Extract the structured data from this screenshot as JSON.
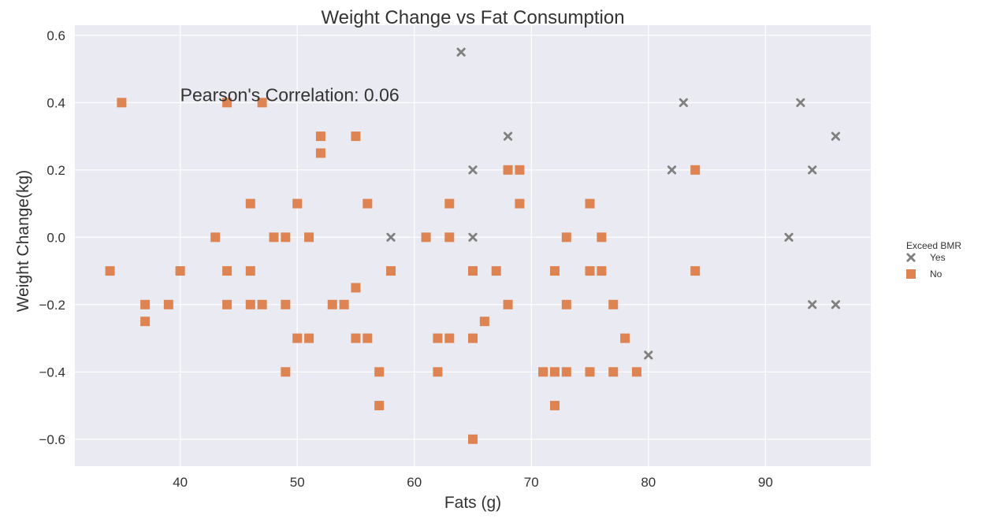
{
  "chart_data": {
    "type": "scatter",
    "title": "Weight Change vs Fat Consumption",
    "xlabel": "Fats (g)",
    "ylabel": "Weight Change(kg)",
    "xlim": [
      31,
      99
    ],
    "ylim": [
      -0.68,
      0.63
    ],
    "xticks": [
      40,
      50,
      60,
      70,
      80,
      90
    ],
    "yticks": [
      -0.6,
      -0.4,
      -0.2,
      0.0,
      0.2,
      0.4,
      0.6
    ],
    "ytick_labels": [
      "−0.6",
      "−0.4",
      "−0.2",
      "0.0",
      "0.2",
      "0.4",
      "0.6"
    ],
    "grid": true,
    "annotation": {
      "text": "Pearson's Correlation: 0.06",
      "x": 40,
      "y": 0.4
    },
    "legend": {
      "title": "Exceed BMR",
      "placement": "right"
    },
    "background_color": "#eaeaf2",
    "series": [
      {
        "name": "Yes",
        "marker": "x",
        "color": "#808080",
        "points": [
          [
            64,
            0.55
          ],
          [
            58,
            0.0
          ],
          [
            65,
            0.2
          ],
          [
            65,
            0.0
          ],
          [
            68,
            0.3
          ],
          [
            80,
            -0.35
          ],
          [
            82,
            0.2
          ],
          [
            83,
            0.4
          ],
          [
            92,
            0.0
          ],
          [
            93,
            0.4
          ],
          [
            94,
            0.2
          ],
          [
            94,
            -0.2
          ],
          [
            96,
            0.3
          ],
          [
            96,
            -0.2
          ]
        ]
      },
      {
        "name": "No",
        "marker": "square",
        "color": "#dd8452",
        "points": [
          [
            34,
            -0.1
          ],
          [
            35,
            0.4
          ],
          [
            37,
            -0.2
          ],
          [
            37,
            -0.25
          ],
          [
            39,
            -0.2
          ],
          [
            40,
            -0.1
          ],
          [
            43,
            0.0
          ],
          [
            44,
            0.4
          ],
          [
            44,
            -0.1
          ],
          [
            44,
            -0.2
          ],
          [
            46,
            0.1
          ],
          [
            46,
            -0.1
          ],
          [
            46,
            -0.2
          ],
          [
            47,
            0.4
          ],
          [
            47,
            -0.2
          ],
          [
            48,
            0.0
          ],
          [
            49,
            0.0
          ],
          [
            49,
            -0.2
          ],
          [
            49,
            -0.4
          ],
          [
            50,
            0.1
          ],
          [
            50,
            -0.3
          ],
          [
            51,
            0.0
          ],
          [
            51,
            -0.3
          ],
          [
            52,
            0.3
          ],
          [
            52,
            0.25
          ],
          [
            53,
            -0.2
          ],
          [
            54,
            -0.2
          ],
          [
            55,
            0.3
          ],
          [
            55,
            -0.15
          ],
          [
            55,
            -0.3
          ],
          [
            56,
            0.1
          ],
          [
            56,
            -0.3
          ],
          [
            57,
            -0.4
          ],
          [
            57,
            -0.5
          ],
          [
            58,
            -0.1
          ],
          [
            61,
            0.0
          ],
          [
            62,
            -0.3
          ],
          [
            62,
            -0.4
          ],
          [
            63,
            0.1
          ],
          [
            63,
            0.0
          ],
          [
            63,
            -0.3
          ],
          [
            65,
            -0.1
          ],
          [
            65,
            -0.3
          ],
          [
            65,
            -0.6
          ],
          [
            66,
            -0.25
          ],
          [
            67,
            -0.1
          ],
          [
            68,
            0.2
          ],
          [
            68,
            -0.2
          ],
          [
            69,
            0.2
          ],
          [
            69,
            0.1
          ],
          [
            71,
            -0.4
          ],
          [
            72,
            -0.1
          ],
          [
            72,
            -0.4
          ],
          [
            72,
            -0.5
          ],
          [
            73,
            0.0
          ],
          [
            73,
            -0.2
          ],
          [
            73,
            -0.4
          ],
          [
            75,
            0.1
          ],
          [
            75,
            -0.1
          ],
          [
            75,
            -0.4
          ],
          [
            76,
            0.0
          ],
          [
            76,
            -0.1
          ],
          [
            77,
            -0.2
          ],
          [
            77,
            -0.4
          ],
          [
            78,
            -0.3
          ],
          [
            79,
            -0.4
          ],
          [
            84,
            0.2
          ],
          [
            84,
            -0.1
          ]
        ]
      }
    ]
  }
}
